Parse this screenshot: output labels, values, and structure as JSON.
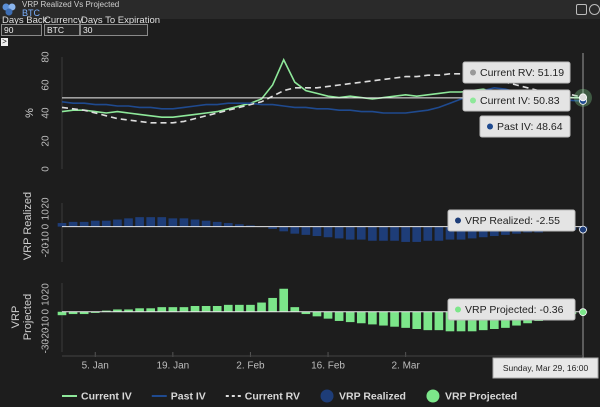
{
  "header": {
    "title": "VRP Realized Vs Projected",
    "subtitle": "BTC"
  },
  "controls": [
    {
      "label": "Days Back",
      "value": "90"
    },
    {
      "label": "Currency",
      "value": "BTC"
    },
    {
      "label": "Days To Expiration",
      "value": "30"
    }
  ],
  "toggle": ">",
  "chart_data": [
    {
      "type": "line",
      "y_label": "%",
      "ylim": [
        0,
        80
      ],
      "yticks": [
        0,
        20,
        40,
        60,
        80
      ],
      "grid": false,
      "series": [
        {
          "name": "Current IV",
          "color": "#8ee89a",
          "values": [
            41,
            42,
            42,
            41,
            40,
            41,
            40,
            39,
            38,
            37,
            37,
            38,
            39,
            40,
            41,
            43,
            45,
            47,
            50,
            60,
            78,
            62,
            56,
            54,
            52,
            51,
            52,
            51,
            50,
            51,
            52,
            53,
            52,
            53,
            54,
            55,
            55,
            56,
            57,
            55,
            54,
            53,
            52,
            52,
            51,
            51,
            51,
            50.83
          ]
        },
        {
          "name": "Past IV",
          "color": "#1f4a8f",
          "values": [
            48,
            47,
            47,
            46,
            46,
            45,
            45,
            44,
            44,
            43,
            43,
            44,
            45,
            46,
            46,
            47,
            47,
            47,
            46,
            46,
            45,
            44,
            44,
            43,
            43,
            42,
            42,
            41,
            41,
            40,
            40,
            40,
            41,
            42,
            44,
            47,
            50,
            53,
            56,
            58,
            57,
            55,
            53,
            52,
            51,
            50,
            49,
            48.64
          ]
        },
        {
          "name": "Current RV",
          "color": "#dddddd",
          "dash": true,
          "values": [
            44,
            43,
            42,
            40,
            38,
            36,
            35,
            34,
            33,
            33,
            33,
            34,
            36,
            38,
            40,
            42,
            44,
            46,
            48,
            52,
            56,
            58,
            58,
            58,
            59,
            60,
            61,
            62,
            63,
            64,
            65,
            66,
            66,
            67,
            67,
            68,
            68,
            67,
            66,
            64,
            62,
            60,
            58,
            56,
            55,
            54,
            53,
            51.19
          ]
        }
      ]
    },
    {
      "type": "bar",
      "y_label": "VRP Realized",
      "ylim": [
        -30,
        20
      ],
      "yticks": [
        -20,
        -10,
        0,
        10,
        20
      ],
      "grid": false,
      "series": [
        {
          "name": "VRP Realized",
          "color": "#1e3d78",
          "values": [
            3,
            4,
            4,
            5,
            5,
            6,
            7,
            8,
            8,
            8,
            7,
            7,
            6,
            5,
            4,
            3,
            2,
            1,
            0,
            -2,
            -4,
            -6,
            -7,
            -8,
            -9,
            -10,
            -11,
            -11,
            -12,
            -12,
            -12,
            -13,
            -13,
            -12,
            -12,
            -11,
            -11,
            -10,
            -9,
            -8,
            -7,
            -6,
            -5,
            -5,
            -4,
            -4,
            -3,
            -2.55
          ]
        }
      ]
    },
    {
      "type": "bar",
      "y_label": "VRP Projected",
      "ylim": [
        -35,
        25
      ],
      "yticks": [
        -30,
        -20,
        -10,
        0,
        10,
        20
      ],
      "grid": false,
      "categories": [
        null,
        null,
        null,
        "5. Jan",
        null,
        null,
        null,
        null,
        null,
        null,
        "19. Jan",
        null,
        null,
        null,
        null,
        null,
        null,
        "2. Feb",
        null,
        null,
        null,
        null,
        null,
        null,
        "16. Feb",
        null,
        null,
        null,
        null,
        null,
        null,
        "2. Mar",
        null,
        null,
        null,
        null,
        null,
        null,
        null,
        null,
        null,
        null,
        null,
        null,
        null,
        null,
        null,
        null
      ],
      "series": [
        {
          "name": "VRP Projected",
          "color": "#7ce68a",
          "values": [
            -3,
            -2,
            -2,
            -1,
            1,
            2,
            2,
            3,
            3,
            4,
            4,
            4,
            5,
            5,
            5,
            6,
            6,
            6,
            8,
            12,
            20,
            4,
            -2,
            -4,
            -6,
            -8,
            -9,
            -10,
            -11,
            -12,
            -13,
            -14,
            -15,
            -16,
            -16,
            -17,
            -17,
            -17,
            -16,
            -15,
            -14,
            -12,
            -10,
            -8,
            -6,
            -4,
            -2,
            -0.36
          ]
        }
      ]
    }
  ],
  "tooltips": [
    "Current RV: 51.19",
    "Current IV: 50.83",
    "Past IV: 48.64",
    "VRP Realized: -2.55",
    "VRP Projected: -0.36"
  ],
  "tooltip_date": "Sunday, Mar 29, 16:00"
}
